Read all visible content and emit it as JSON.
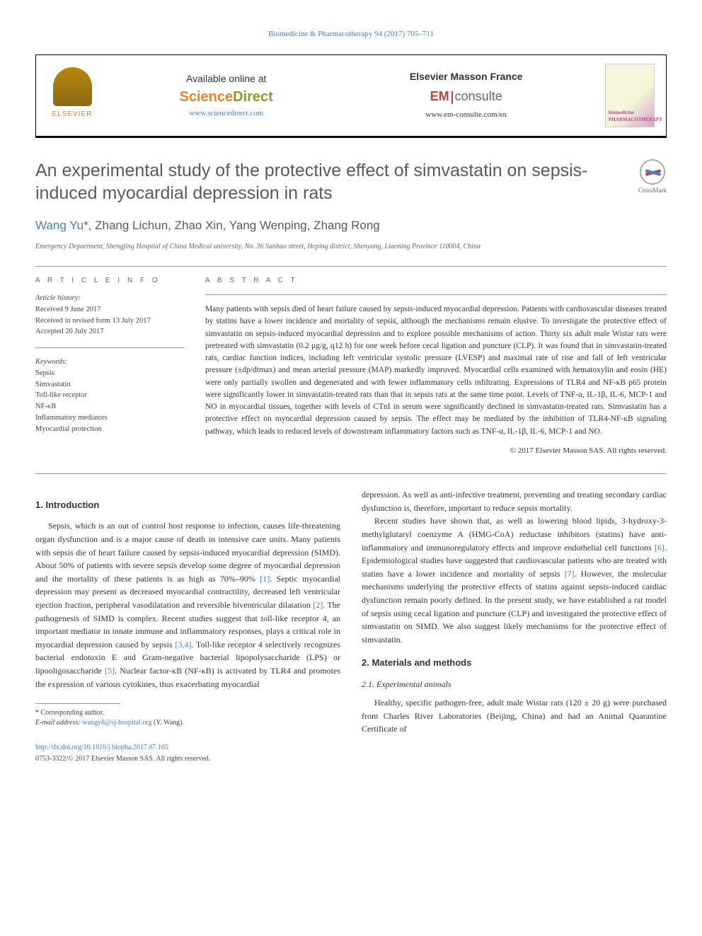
{
  "header": {
    "journal_ref": "Biomedicine & Pharmacotherapy 94 (2017) 705–711",
    "elsevier_label": "ELSEVIER",
    "sd_available": "Available online at",
    "sd_brand_1": "Science",
    "sd_brand_2": "Direct",
    "sd_url": "www.sciencedirect.com",
    "em_title": "Elsevier Masson France",
    "em_brand_1": "EM",
    "em_brand_2": "consulte",
    "em_url": "www.em-consulte.com/en",
    "journal_cover_1": "biomedicine",
    "journal_cover_2": "PHARMACOTHERAPY"
  },
  "title": "An experimental study of the protective effect of simvastatin on sepsis-induced myocardial depression in rats",
  "crossmark": "CrossMark",
  "authors_html": "Wang Yu*, Zhang Lichun, Zhao Xin, Yang Wenping, Zhang Rong",
  "author_link": "Wang Yu",
  "affiliation": "Emergency Department, Shengjing Hospital of China Medical university, No. 36 Sanhao street, Heping district, Shenyang, Liaoning Province 110004, China",
  "article_info": {
    "label": "A R T I C L E   I N F O",
    "history_hdr": "Article history:",
    "received": "Received 9 June 2017",
    "revised": "Received in revised form 13 July 2017",
    "accepted": "Accepted 20 July 2017",
    "keywords_hdr": "Keywords:",
    "keywords": [
      "Sepsis",
      "Simvastatin",
      "Toll-like receptor",
      "NF-κB",
      "Inflammatory mediators",
      "Myocardial protection"
    ]
  },
  "abstract": {
    "label": "A B S T R A C T",
    "text": "Many patients with sepsis died of heart failure caused by sepsis-induced myocardial depression. Patients with cardiovascular diseases treated by statins have a lower incidence and mortality of sepsis, although the mechanisms remain elusive. To investigate the protective effect of simvastatin on sepsis-induced myocardial depression and to explore possible mechanisms of action. Thirty six adult male Wistar rats were pretreated with simvastatin (0.2 μg/g, q12 h) for one week before cecal ligation and puncture (CLP). It was found that in simvastatin-treated rats, cardiac function indices, including left ventricular systolic pressure (LVESP) and maximal rate of rise and fall of left ventricular pressure (±dp/dtmax) and mean arterial pressure (MAP) markedly improved. Myocardial cells examined with hematoxylin and eosin (HE) were only partially swollen and degenerated and with fewer inflammatory cells infiltrating. Expressions of TLR4 and NF-κB p65 protein were significantly lower in simvastatin-treated rats than that in sepsis rats at the same time point. Levels of TNF-α, IL-1β, IL-6, MCP-1 and NO in myocardial tissues, together with levels of CTnI in serum were significantly declined in simvastatin-treated rats. Simvastatin has a protective effect on myocardial depression caused by sepsis. The effect may be mediated by the inhibition of TLR4-NF-κB signaling pathway, which leads to reduced levels of downstream inflammatory factors such as TNF-α, IL-1β, IL-6, MCP-1 and NO.",
    "copyright": "© 2017 Elsevier Masson SAS. All rights reserved."
  },
  "body": {
    "intro_hdr": "1. Introduction",
    "intro_p1": "Sepsis, which is an out of control host response to infection, causes life-threatening organ dysfunction and is a major cause of death in intensive care units. Many patients with sepsis die of heart failure caused by sepsis-induced myocardial depression (SIMD). About 50% of patients with severe sepsis develop some degree of myocardial depression and the mortality of these patients is as high as 70%–90% ",
    "ref1": "[1]",
    "intro_p1b": ". Septic myocardial depression may present as decreased myocardial contractility, decreased left ventricular ejection fraction, peripheral vasodilatation and reversible biventricular dilatation ",
    "ref2": "[2]",
    "intro_p1c": ". The pathogenesis of SIMD is complex. Recent studies suggest that toll-like receptor 4, an important mediator in innate immune and inflammatory responses, plays a critical role in myocardial depression caused by sepsis ",
    "ref34": "[3,4]",
    "intro_p1d": ". Toll-like receptor 4 selectively recognizes bacterial endotoxin E and Gram-negative bacterial lipopolysaccharide (LPS) or lipooligosaccharide ",
    "ref5": "[5]",
    "intro_p1e": ". Nuclear factor-κB (NF-κB) is activated by TLR4 and promotes the expression of various cytokines, thus exacerbating myocardial",
    "col2_p1": "depression. As well as anti-infective treatment, preventing and treating secondary cardiac dysfunction is, therefore, important to reduce sepsis mortality.",
    "col2_p2a": "Recent studies have shown that, as well as lowering blood lipids, 3-hydroxy-3-methylglutaryl coenzyme A (HMG-CoA) reductase inhibitors (statins) have anti-inflammatory and immunoregulatory effects and improve endothelial cell functions ",
    "ref6": "[6]",
    "col2_p2b": ". Epidemiological studies have suggested that cardiovascular patients who are treated with statins have a lower incidence and mortality of sepsis ",
    "ref7": "[7]",
    "col2_p2c": ". However, the molecular mechanisms underlying the protective effects of statins against sepsis-induced cardiac dysfunction remain poorly defined. In the present study, we have established a rat model of sepsis using cecal ligation and puncture (CLP) and investigated the protective effect of simvastatin on SIMD. We also suggest likely mechanisms for the protective effect of simvastatin.",
    "methods_hdr": "2. Materials and methods",
    "methods_sub": "2.1. Experimental animals",
    "methods_p1": "Healthy, specific pathogen-free, adult male Wistar rats (120 ± 20 g) were purchased from Charles River Laboratories (Beijing, China) and had an Animal Quarantine Certificate of"
  },
  "footnote": {
    "corr": "* Corresponding author.",
    "email_label": "E-mail address: ",
    "email": "wangy8@sj-hospital.org",
    "email_suffix": " (Y. Wang)."
  },
  "doi": {
    "url": "http://dx.doi.org/10.1016/j.biopha.2017.07.105",
    "issn": "0753-3322/© 2017 Elsevier Masson SAS. All rights reserved."
  },
  "colors": {
    "link": "#4a7fb5",
    "orange": "#e8812a",
    "green": "#7ba428",
    "red": "#c04040"
  }
}
